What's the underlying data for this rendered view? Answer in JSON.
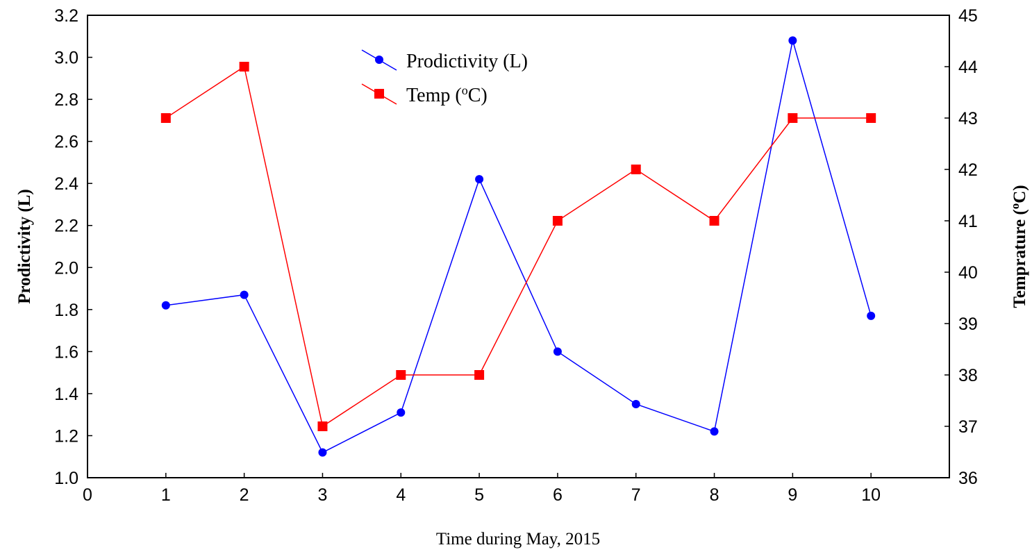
{
  "chart_data": {
    "type": "line",
    "xlabel": "Time during May, 2015",
    "ylabel_left": "Prodictivity (L)",
    "ylabel_right_prefix": "Temprature (",
    "ylabel_right_degree": "o",
    "ylabel_right_suffix": "C)",
    "xlim": [
      0,
      11
    ],
    "ylim_left": [
      1.0,
      3.2
    ],
    "ylim_right": [
      36,
      45
    ],
    "x_ticks": [
      0,
      1,
      2,
      3,
      4,
      5,
      6,
      7,
      8,
      9,
      10
    ],
    "x_tick_labels": [
      "0",
      "1",
      "2",
      "3",
      "4",
      "5",
      "6",
      "7",
      "8",
      "9",
      "10"
    ],
    "y_left_ticks": [
      1.0,
      1.2,
      1.4,
      1.6,
      1.8,
      2.0,
      2.2,
      2.4,
      2.6,
      2.8,
      3.0,
      3.2
    ],
    "y_left_tick_labels": [
      "1.0",
      "1.2",
      "1.4",
      "1.6",
      "1.8",
      "2.0",
      "2.2",
      "2.4",
      "2.6",
      "2.8",
      "3.0",
      "3.2"
    ],
    "y_right_ticks": [
      36,
      37,
      38,
      39,
      40,
      41,
      42,
      43,
      44,
      45
    ],
    "y_right_tick_labels": [
      "36",
      "37",
      "38",
      "39",
      "40",
      "41",
      "42",
      "43",
      "44",
      "45"
    ],
    "grid": false,
    "legend_position": "top-center",
    "series": [
      {
        "name": "Prodictivity (L)",
        "axis": "left",
        "color": "#0000ff",
        "marker": "circle",
        "x": [
          1,
          2,
          3,
          4,
          5,
          6,
          7,
          8,
          9,
          10
        ],
        "values": [
          1.82,
          1.87,
          1.12,
          1.31,
          2.42,
          1.6,
          1.35,
          1.22,
          3.08,
          1.77
        ]
      },
      {
        "name_prefix": "Temp (",
        "name_degree": "o",
        "name_suffix": "C)",
        "axis": "right",
        "color": "#ff0000",
        "marker": "square",
        "x": [
          1,
          2,
          3,
          4,
          5,
          6,
          7,
          8,
          9,
          10
        ],
        "values": [
          43,
          44,
          37,
          38,
          38,
          41,
          42,
          41,
          43,
          43
        ]
      }
    ]
  }
}
